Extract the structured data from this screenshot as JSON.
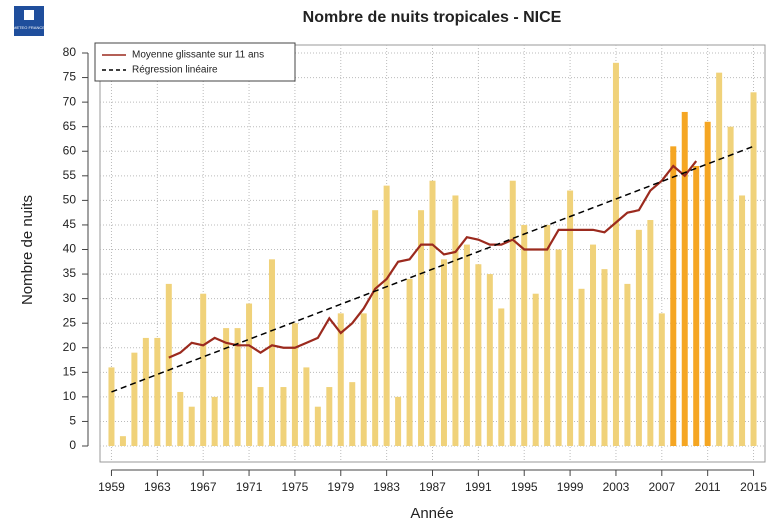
{
  "chart_data": {
    "type": "bar",
    "title": "Nombre de nuits tropicales  - NICE",
    "logo_text": "METEO FRANCE",
    "xlabel": "Année",
    "ylabel": "Nombre de nuits",
    "x": [
      1959,
      1960,
      1961,
      1962,
      1963,
      1964,
      1965,
      1966,
      1967,
      1968,
      1969,
      1970,
      1971,
      1972,
      1973,
      1974,
      1975,
      1976,
      1977,
      1978,
      1979,
      1980,
      1981,
      1982,
      1983,
      1984,
      1985,
      1986,
      1987,
      1988,
      1989,
      1990,
      1991,
      1992,
      1993,
      1994,
      1995,
      1996,
      1997,
      1998,
      1999,
      2000,
      2001,
      2002,
      2003,
      2004,
      2005,
      2006,
      2007,
      2008,
      2009,
      2010,
      2011,
      2012,
      2013,
      2014,
      2015
    ],
    "values": [
      16,
      2,
      19,
      22,
      22,
      33,
      11,
      8,
      31,
      10,
      24,
      24,
      29,
      12,
      38,
      12,
      25,
      16,
      8,
      12,
      27,
      13,
      27,
      48,
      53,
      10,
      34,
      48,
      54,
      38,
      51,
      41,
      37,
      35,
      28,
      54,
      45,
      31,
      45,
      40,
      52,
      32,
      41,
      36,
      78,
      33,
      44,
      46,
      27,
      61,
      68,
      57,
      66,
      76,
      65,
      51,
      72
    ],
    "bar_colors": [
      "#f0d27a",
      "#f0d27a",
      "#f0d27a",
      "#f0d27a",
      "#f0d27a",
      "#f0d27a",
      "#f0d27a",
      "#f0d27a",
      "#f0d27a",
      "#f0d27a",
      "#f0d27a",
      "#f0d27a",
      "#f0d27a",
      "#f0d27a",
      "#f0d27a",
      "#f0d27a",
      "#f0d27a",
      "#f0d27a",
      "#f0d27a",
      "#f0d27a",
      "#f0d27a",
      "#f0d27a",
      "#f0d27a",
      "#f0d27a",
      "#f0d27a",
      "#f0d27a",
      "#f0d27a",
      "#f0d27a",
      "#f0d27a",
      "#f0d27a",
      "#f0d27a",
      "#f0d27a",
      "#f0d27a",
      "#f0d27a",
      "#f0d27a",
      "#f0d27a",
      "#f0d27a",
      "#f0d27a",
      "#f0d27a",
      "#f0d27a",
      "#f0d27a",
      "#f0d27a",
      "#f0d27a",
      "#f0d27a",
      "#f0d27a",
      "#f0d27a",
      "#f0d27a",
      "#f0d27a",
      "#f0d27a",
      "#f5a623",
      "#f5a623",
      "#f5a623",
      "#f5a623",
      "#f0d27a",
      "#f0d27a",
      "#f0d27a",
      "#f0d27a"
    ],
    "series": [
      {
        "name": "Moyenne glissante sur 11 ans",
        "type": "line",
        "color": "#9b2a1e",
        "dash": false,
        "x": [
          1964,
          1965,
          1966,
          1967,
          1968,
          1969,
          1970,
          1971,
          1972,
          1973,
          1974,
          1975,
          1976,
          1977,
          1978,
          1979,
          1980,
          1981,
          1982,
          1983,
          1984,
          1985,
          1986,
          1987,
          1988,
          1989,
          1990,
          1991,
          1992,
          1993,
          1994,
          1995,
          1996,
          1997,
          1998,
          1999,
          2000,
          2001,
          2002,
          2003,
          2004,
          2005,
          2006,
          2007,
          2008,
          2009,
          2010
        ],
        "values": [
          18,
          19,
          21,
          20.5,
          22,
          21,
          20.5,
          20.5,
          19,
          20.5,
          20,
          20,
          21,
          22,
          26,
          23,
          25,
          28,
          32,
          34,
          37.5,
          38,
          41,
          41,
          39,
          39.5,
          42.5,
          42,
          41,
          41,
          42,
          40,
          40,
          40,
          44,
          44,
          44,
          44,
          43.5,
          45.5,
          47.5,
          48,
          52,
          54,
          57,
          55,
          58
        ]
      },
      {
        "name": "Régression linéaire",
        "type": "line",
        "color": "#000000",
        "dash": true,
        "x": [
          1959,
          2015
        ],
        "values": [
          11,
          61
        ]
      }
    ],
    "xlim": [
      1958,
      2016
    ],
    "ylim": [
      0,
      80
    ],
    "xticks": [
      1959,
      1963,
      1967,
      1971,
      1975,
      1979,
      1983,
      1987,
      1991,
      1995,
      1999,
      2003,
      2007,
      2011,
      2015
    ],
    "yticks": [
      0,
      5,
      10,
      15,
      20,
      25,
      30,
      35,
      40,
      45,
      50,
      55,
      60,
      65,
      70,
      75,
      80
    ],
    "grid": true
  }
}
